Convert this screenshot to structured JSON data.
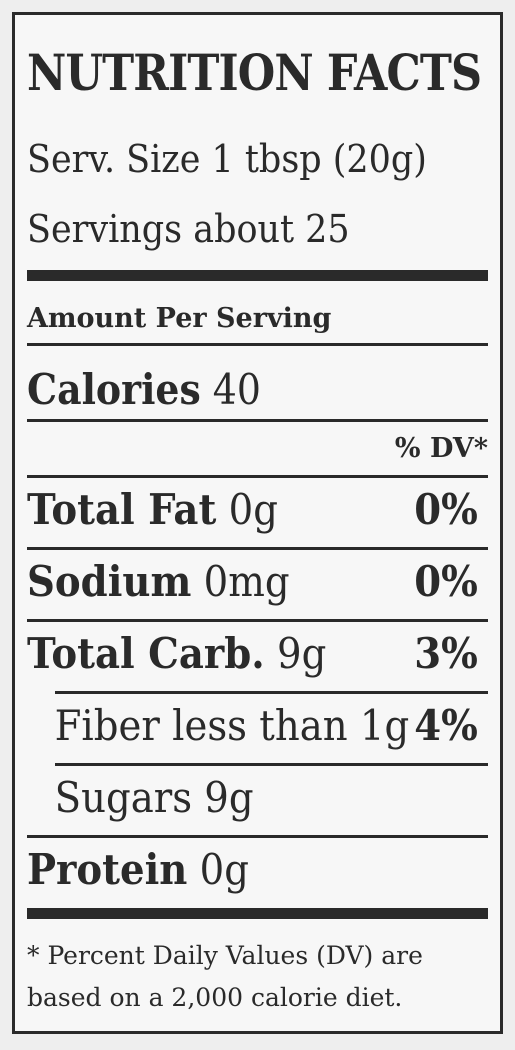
{
  "header": {
    "title": "NUTRITION FACTS",
    "serving_size": "Serv. Size 1 tbsp (20g)",
    "servings": "Servings about 25"
  },
  "amount_per_serving": "Amount Per Serving",
  "calories": {
    "label": "Calories",
    "value": "40"
  },
  "dv_header": "% DV*",
  "nutrients": [
    {
      "label": "Total Fat",
      "amount": "0g",
      "dv": "0%"
    },
    {
      "label": "Sodium",
      "amount": "0mg",
      "dv": "0%"
    },
    {
      "label": "Total Carb.",
      "amount": "9g",
      "dv": "3%"
    },
    {
      "label": "Fiber less than 1g",
      "amount": "",
      "dv": "4%"
    },
    {
      "label": "Sugars 9g",
      "amount": "",
      "dv": ""
    },
    {
      "label": "Protein",
      "amount": "0g",
      "dv": ""
    }
  ],
  "footnote": {
    "line1": "* Percent Daily Values (DV) are",
    "line2": "based on a 2,000 calorie diet."
  }
}
